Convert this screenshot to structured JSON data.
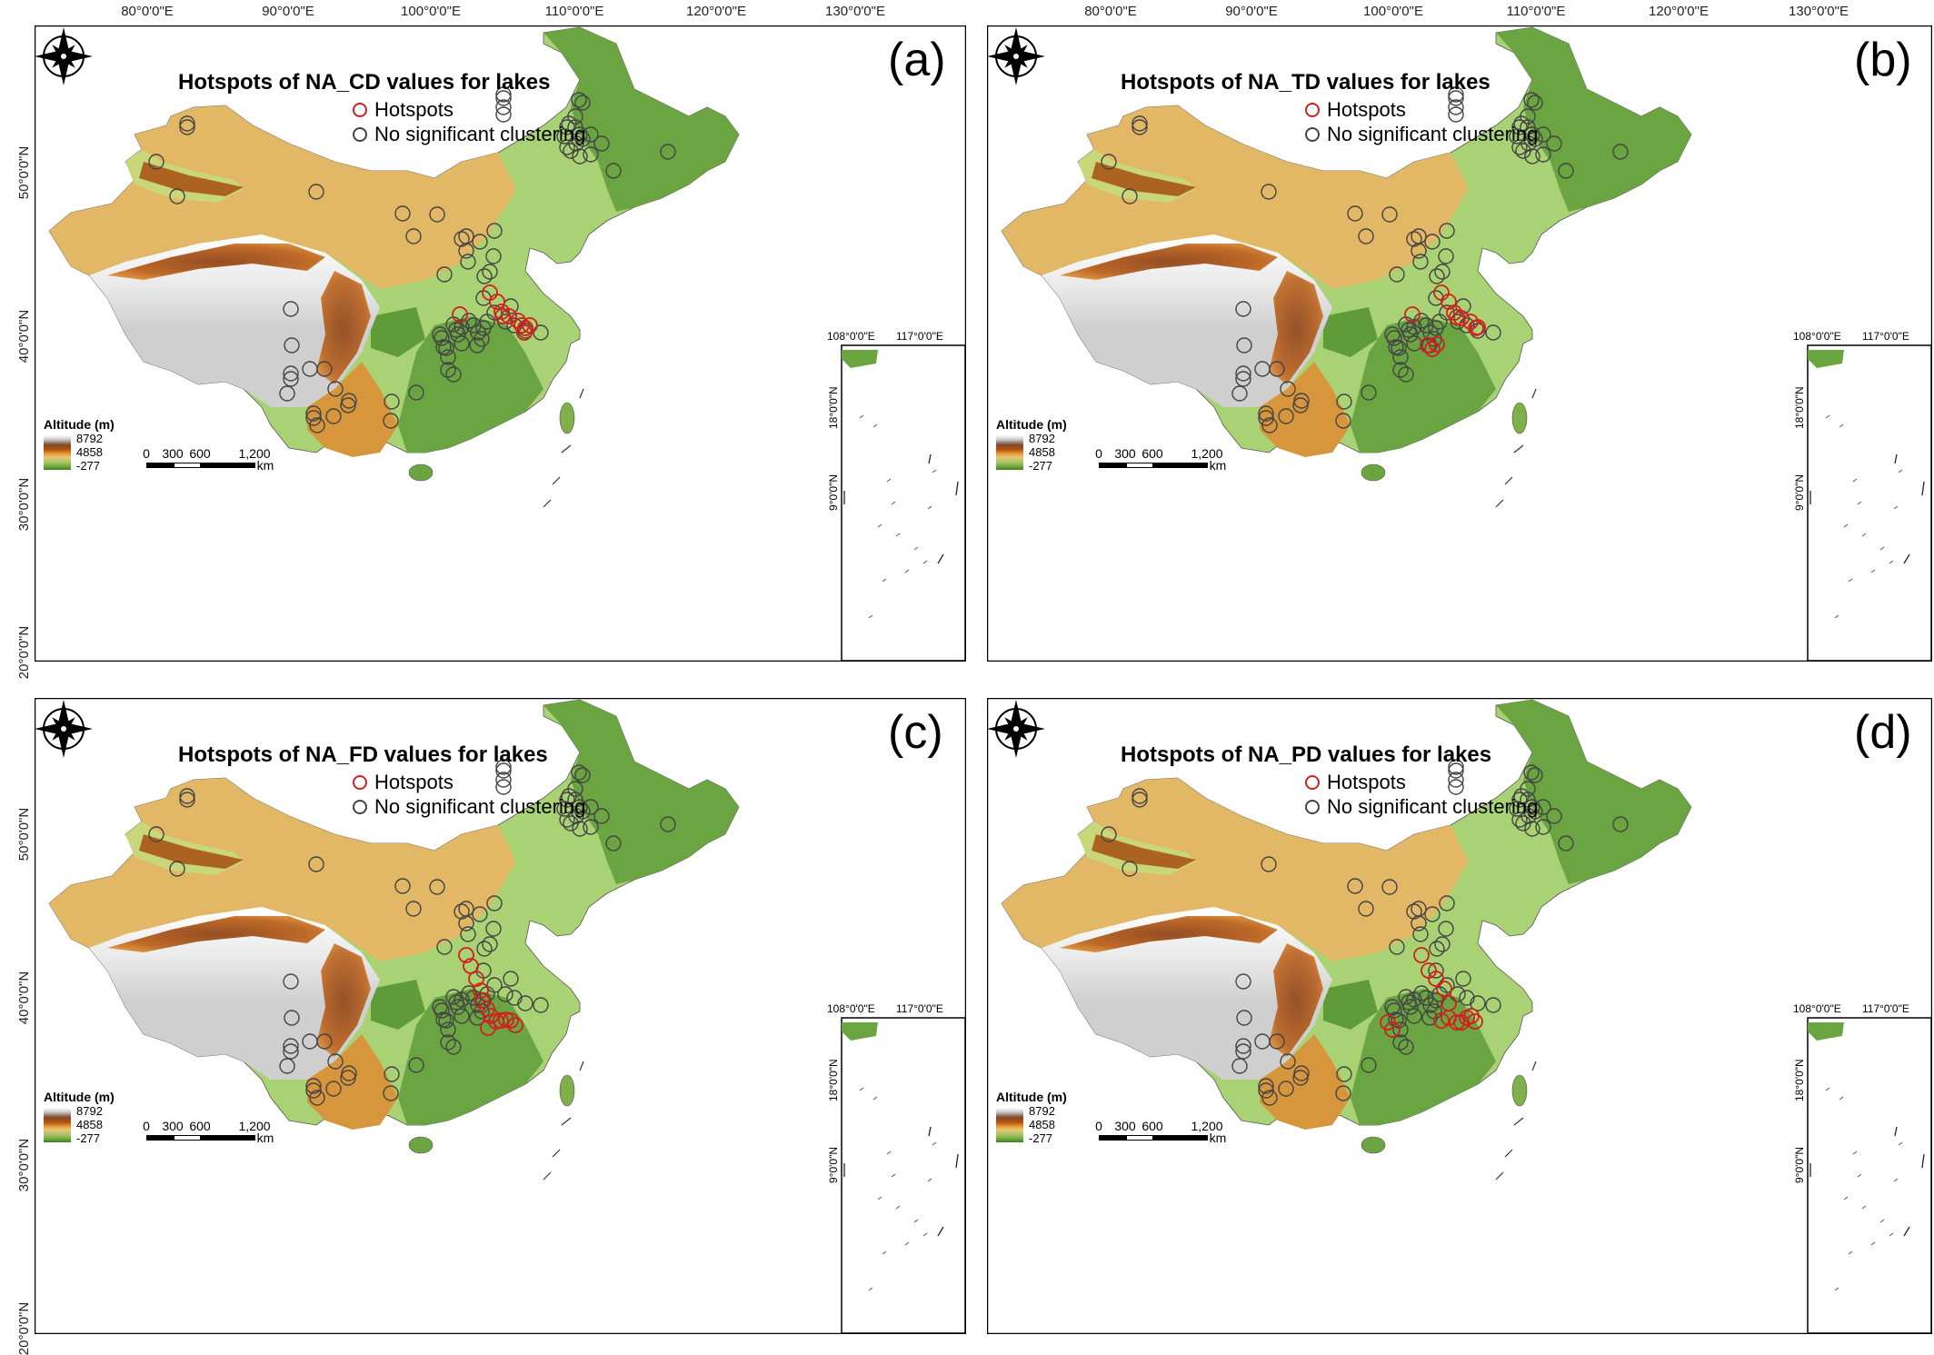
{
  "colors": {
    "hotspot": "#d21f1f",
    "non_significant": "#444444",
    "lowland": "#9ccc65",
    "plain": "#a8d273",
    "hills": "#6aa541",
    "plateau": "#e2b766",
    "highland": "#c46a1c",
    "peaks": "#f2f2f2"
  },
  "coordinates": {
    "top_labels": [
      "80°0'0\"E",
      "90°0'0\"E",
      "100°0'0\"E",
      "110°0'0\"E",
      "120°0'0\"E",
      "130°0'0\"E"
    ],
    "left_labels": [
      "50°0'0\"N",
      "40°0'0\"N",
      "30°0'0\"N",
      "20°0'0\"N"
    ],
    "inset_top": [
      "108°0'0\"E",
      "117°0'0\"E"
    ],
    "inset_left": [
      "18°0'0\"N",
      "9°0'0\"N"
    ]
  },
  "legend": {
    "hotspots": "Hotspots",
    "not_significant": "No significant clustering"
  },
  "altitude_legend": {
    "title": "Altitude (m)",
    "values": [
      "8792",
      "4858",
      "-277"
    ]
  },
  "scale_bar": {
    "ticks": [
      "0",
      "300",
      "600",
      "1,200"
    ],
    "unit": "km"
  },
  "compass_icon": "north-arrow-compass-rose",
  "panels": [
    {
      "label": "(a)",
      "title": "Hotspots of NA_CD values for lakes",
      "variant": "CD"
    },
    {
      "label": "(b)",
      "title": "Hotspots of NA_TD values for lakes",
      "variant": "TD"
    },
    {
      "label": "(c)",
      "title": "Hotspots of NA_FD values for lakes",
      "variant": "FD"
    },
    {
      "label": "(d)",
      "title": "Hotspots of NA_PD values for lakes",
      "variant": "PD"
    }
  ]
}
